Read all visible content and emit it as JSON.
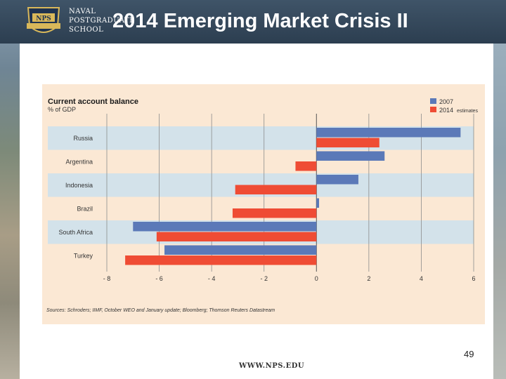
{
  "header": {
    "school_lines": [
      "NAVAL",
      "POSTGRADUATE",
      "SCHOOL"
    ],
    "title": "2014 Emerging Market Crisis II"
  },
  "chart_data": {
    "type": "bar",
    "orientation": "horizontal",
    "title": "Current account balance",
    "subtitle": "% of GDP",
    "categories": [
      "Russia",
      "Argentina",
      "Indonesia",
      "Brazil",
      "South Africa",
      "Turkey"
    ],
    "series": [
      {
        "name": "2007",
        "color": "#5b79b8",
        "values": [
          5.5,
          2.6,
          1.6,
          0.1,
          -7.0,
          -5.8
        ]
      },
      {
        "name": "2014",
        "note": "estimates",
        "color": "#ef4c34",
        "values": [
          2.4,
          -0.8,
          -3.1,
          -3.2,
          -6.1,
          -7.3
        ]
      }
    ],
    "xlim": [
      -8,
      6
    ],
    "xticks": [
      -8,
      -6,
      -4,
      -2,
      0,
      2,
      4,
      6
    ],
    "xtick_labels": [
      "- 8",
      "- 6",
      "- 4",
      "- 2",
      "0",
      "2",
      "4",
      "6"
    ],
    "grid": true,
    "legend_position": "top-right",
    "source": "Sources: Schroders; IIMF, October WEO and January update; Bloomberg; Thomson Reuters Datastream"
  },
  "footer": {
    "page_number": "49",
    "url": "WWW.NPS.EDU"
  }
}
